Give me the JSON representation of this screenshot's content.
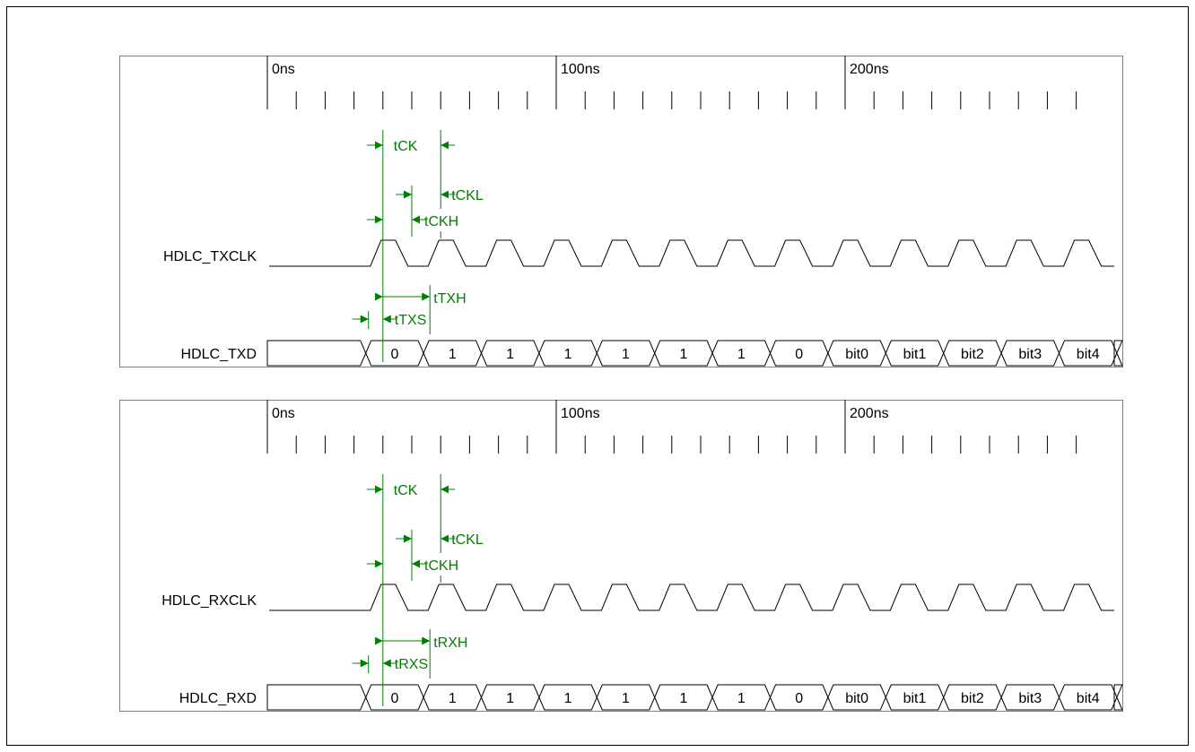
{
  "colors": {
    "annotation": "#008000",
    "signal": "#000000",
    "frame": "#808080"
  },
  "diagrams": [
    {
      "time_labels": [
        "0ns",
        "100ns",
        "200ns"
      ],
      "clock_signal": "HDLC_TXCLK",
      "data_signal": "HDLC_TXD",
      "data_values": [
        "",
        "0",
        "1",
        "1",
        "1",
        "1",
        "1",
        "1",
        "0",
        "bit0",
        "bit1",
        "bit2",
        "bit3",
        "bit4",
        ""
      ],
      "annotations": {
        "ck": "tCK",
        "ckl": "tCKL",
        "ckh": "tCKH",
        "hold": "tTXH",
        "setup": "tTXS"
      }
    },
    {
      "time_labels": [
        "0ns",
        "100ns",
        "200ns"
      ],
      "clock_signal": "HDLC_RXCLK",
      "data_signal": "HDLC_RXD",
      "data_values": [
        "",
        "0",
        "1",
        "1",
        "1",
        "1",
        "1",
        "1",
        "0",
        "bit0",
        "bit1",
        "bit2",
        "bit3",
        "bit4",
        ""
      ],
      "annotations": {
        "ck": "tCK",
        "ckl": "tCKL",
        "ckh": "tCKH",
        "hold": "tRXH",
        "setup": "tRXS"
      }
    }
  ]
}
